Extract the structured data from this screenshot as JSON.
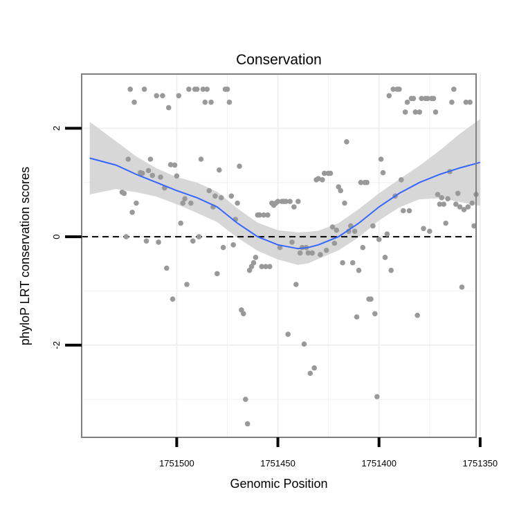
{
  "chart_data": {
    "type": "scatter",
    "title": "Conservation",
    "xlabel": "Genomic Position",
    "ylabel": "phyloP LRT conservation scores",
    "x_reversed": true,
    "xlim": [
      1751352,
      1751547
    ],
    "ylim": [
      -3.7,
      3.0
    ],
    "x_ticks": [
      1751500,
      1751450,
      1751400,
      1751350
    ],
    "x_tick_labels": [
      "1751500",
      "1751450",
      "1751400",
      "1751350"
    ],
    "y_ticks": [
      2,
      0,
      -2
    ],
    "y_tick_labels": [
      "2",
      "0",
      "-2"
    ],
    "reference_line": {
      "y": 0,
      "style": "dashed"
    },
    "colors": {
      "points": "#999999",
      "smooth_line": "#3366ff",
      "confidence_band": "#d3d3d3",
      "panel_border": "#7f7f7f",
      "grid": "#f0f0f0"
    },
    "series": [
      {
        "name": "scores",
        "points": [
          [
            1751527,
            0.82
          ],
          [
            1751526,
            0.8
          ],
          [
            1751525,
            0.0
          ],
          [
            1751524,
            1.43
          ],
          [
            1751523,
            2.72
          ],
          [
            1751522,
            0.45
          ],
          [
            1751521,
            2.48
          ],
          [
            1751520,
            0.62
          ],
          [
            1751518,
            1.18
          ],
          [
            1751517,
            1.17
          ],
          [
            1751516,
            2.72
          ],
          [
            1751515,
            -0.08
          ],
          [
            1751514,
            1.22
          ],
          [
            1751513,
            1.43
          ],
          [
            1751512,
            1.13
          ],
          [
            1751510,
            2.6
          ],
          [
            1751509,
            -0.1
          ],
          [
            1751508,
            1.1
          ],
          [
            1751507,
            2.6
          ],
          [
            1751506,
            0.9
          ],
          [
            1751505,
            -0.58
          ],
          [
            1751504,
            2.38
          ],
          [
            1751503,
            1.33
          ],
          [
            1751502,
            -1.15
          ],
          [
            1751501,
            1.32
          ],
          [
            1751500,
            1.12
          ],
          [
            1751499,
            2.6
          ],
          [
            1751498,
            0.25
          ],
          [
            1751497,
            0.62
          ],
          [
            1751496,
            0.7
          ],
          [
            1751495,
            -0.88
          ],
          [
            1751494,
            2.72
          ],
          [
            1751493,
            0.62
          ],
          [
            1751492,
            -0.08
          ],
          [
            1751491,
            2.72
          ],
          [
            1751490,
            2.72
          ],
          [
            1751489,
            0.0
          ],
          [
            1751488,
            1.43
          ],
          [
            1751487,
            2.72
          ],
          [
            1751486,
            2.48
          ],
          [
            1751485,
            2.72
          ],
          [
            1751484,
            0.85
          ],
          [
            1751483,
            2.48
          ],
          [
            1751482,
            0.55
          ],
          [
            1751481,
            0.75
          ],
          [
            1751480,
            -0.68
          ],
          [
            1751479,
            1.23
          ],
          [
            1751478,
            0.72
          ],
          [
            1751477,
            -0.2
          ],
          [
            1751476,
            2.72
          ],
          [
            1751475,
            2.72
          ],
          [
            1751474,
            2.48
          ],
          [
            1751473,
            0.75
          ],
          [
            1751472,
            -0.15
          ],
          [
            1751471,
            0.32
          ],
          [
            1751470,
            0.62
          ],
          [
            1751469,
            1.3
          ],
          [
            1751468,
            -1.35
          ],
          [
            1751467,
            -1.42
          ],
          [
            1751466,
            -3.0
          ],
          [
            1751465,
            -3.45
          ],
          [
            1751464,
            -0.62
          ],
          [
            1751463,
            -0.55
          ],
          [
            1751462,
            -0.48
          ],
          [
            1751461,
            -0.38
          ],
          [
            1751460,
            0.4
          ],
          [
            1751459,
            0.4
          ],
          [
            1751458,
            -0.55
          ],
          [
            1751457,
            0.4
          ],
          [
            1751456,
            -0.55
          ],
          [
            1751455,
            0.4
          ],
          [
            1751454,
            -0.55
          ],
          [
            1751453,
            0.62
          ],
          [
            1751452,
            0.58
          ],
          [
            1751451,
            0.62
          ],
          [
            1751450,
            0.65
          ],
          [
            1751449,
            -0.2
          ],
          [
            1751448,
            0.65
          ],
          [
            1751447,
            0.65
          ],
          [
            1751446,
            0.65
          ],
          [
            1751445,
            -1.8
          ],
          [
            1751444,
            0.65
          ],
          [
            1751443,
            -0.1
          ],
          [
            1751442,
            0.55
          ],
          [
            1751441,
            -0.88
          ],
          [
            1751440,
            0.65
          ],
          [
            1751439,
            -0.3
          ],
          [
            1751438,
            -0.2
          ],
          [
            1751437,
            -1.98
          ],
          [
            1751436,
            -0.2
          ],
          [
            1751435,
            -0.3
          ],
          [
            1751434,
            -2.52
          ],
          [
            1751433,
            -0.3
          ],
          [
            1751432,
            -2.42
          ],
          [
            1751431,
            1.05
          ],
          [
            1751430,
            1.07
          ],
          [
            1751429,
            -0.33
          ],
          [
            1751428,
            1.05
          ],
          [
            1751427,
            1.17
          ],
          [
            1751426,
            -0.25
          ],
          [
            1751425,
            1.17
          ],
          [
            1751424,
            1.17
          ],
          [
            1751423,
            0.18
          ],
          [
            1751422,
            -0.12
          ],
          [
            1751421,
            0.12
          ],
          [
            1751420,
            0.92
          ],
          [
            1751419,
            0.85
          ],
          [
            1751418,
            -0.48
          ],
          [
            1751417,
            0.62
          ],
          [
            1751416,
            1.75
          ],
          [
            1751415,
            0.1
          ],
          [
            1751414,
            0.2
          ],
          [
            1751413,
            -0.48
          ],
          [
            1751412,
            0.1
          ],
          [
            1751411,
            -1.48
          ],
          [
            1751410,
            -0.62
          ],
          [
            1751409,
            1.0
          ],
          [
            1751408,
            -0.2
          ],
          [
            1751407,
            1.0
          ],
          [
            1751406,
            1.0
          ],
          [
            1751405,
            -1.15
          ],
          [
            1751404,
            -1.15
          ],
          [
            1751403,
            0.2
          ],
          [
            1751402,
            -1.42
          ],
          [
            1751401,
            -2.95
          ],
          [
            1751400,
            -0.05
          ],
          [
            1751399,
            1.43
          ],
          [
            1751398,
            1.18
          ],
          [
            1751397,
            -0.38
          ],
          [
            1751396,
            0.05
          ],
          [
            1751395,
            2.6
          ],
          [
            1751394,
            -0.62
          ],
          [
            1751393,
            2.72
          ],
          [
            1751392,
            0.75
          ],
          [
            1751391,
            2.72
          ],
          [
            1751390,
            2.72
          ],
          [
            1751389,
            1.05
          ],
          [
            1751388,
            0.48
          ],
          [
            1751387,
            2.3
          ],
          [
            1751386,
            2.48
          ],
          [
            1751385,
            0.48
          ],
          [
            1751384,
            2.55
          ],
          [
            1751383,
            2.55
          ],
          [
            1751382,
            2.3
          ],
          [
            1751381,
            -1.45
          ],
          [
            1751380,
            2.3
          ],
          [
            1751379,
            2.55
          ],
          [
            1751378,
            0.15
          ],
          [
            1751377,
            2.55
          ],
          [
            1751376,
            2.55
          ],
          [
            1751375,
            0.1
          ],
          [
            1751374,
            2.55
          ],
          [
            1751373,
            2.55
          ],
          [
            1751372,
            2.3
          ],
          [
            1751371,
            0.78
          ],
          [
            1751370,
            0.6
          ],
          [
            1751369,
            0.72
          ],
          [
            1751368,
            0.6
          ],
          [
            1751367,
            0.25
          ],
          [
            1751366,
            0.7
          ],
          [
            1751365,
            1.2
          ],
          [
            1751364,
            2.48
          ],
          [
            1751363,
            2.72
          ],
          [
            1751362,
            0.6
          ],
          [
            1751361,
            0.8
          ],
          [
            1751360,
            0.55
          ],
          [
            1751359,
            -0.93
          ],
          [
            1751358,
            0.5
          ],
          [
            1751357,
            2.48
          ],
          [
            1751356,
            0.55
          ],
          [
            1751355,
            2.48
          ],
          [
            1751354,
            0.62
          ],
          [
            1751353,
            0.2
          ],
          [
            1751352,
            0.78
          ]
        ]
      }
    ],
    "smooth": {
      "method": "loess",
      "x": [
        1751543,
        1751530,
        1751520,
        1751510,
        1751500,
        1751490,
        1751480,
        1751470,
        1751460,
        1751450,
        1751440,
        1751435,
        1751430,
        1751420,
        1751410,
        1751400,
        1751390,
        1751380,
        1751370,
        1751360,
        1751350
      ],
      "y": [
        1.45,
        1.32,
        1.15,
        1.0,
        0.85,
        0.72,
        0.55,
        0.25,
        0.0,
        -0.15,
        -0.22,
        -0.2,
        -0.15,
        0.0,
        0.25,
        0.55,
        0.8,
        1.0,
        1.15,
        1.27,
        1.37
      ],
      "lower": [
        0.78,
        0.88,
        0.82,
        0.74,
        0.6,
        0.44,
        0.27,
        -0.02,
        -0.26,
        -0.42,
        -0.52,
        -0.49,
        -0.41,
        -0.25,
        -0.01,
        0.3,
        0.54,
        0.69,
        0.71,
        0.64,
        0.57
      ],
      "upper": [
        2.12,
        1.76,
        1.48,
        1.26,
        1.1,
        1.0,
        0.83,
        0.52,
        0.26,
        0.12,
        0.08,
        0.09,
        0.11,
        0.25,
        0.51,
        0.8,
        1.06,
        1.31,
        1.59,
        1.9,
        2.17
      ]
    }
  }
}
